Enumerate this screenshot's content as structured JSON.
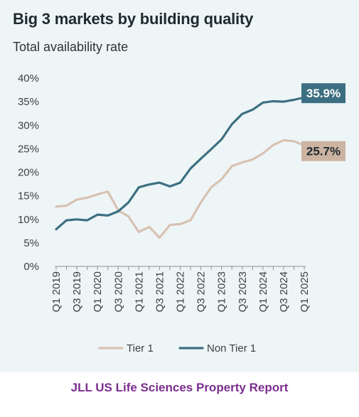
{
  "header": {
    "title": "Big 3 markets by building quality",
    "subtitle": "Total availability rate"
  },
  "footer": {
    "text": "JLL US Life Sciences Property Report"
  },
  "chart_data": {
    "type": "line",
    "title": "Big 3 markets by building quality",
    "subtitle": "Total availability rate",
    "xlabel": "",
    "ylabel": "",
    "x": [
      "Q1 2019",
      "Q2 2019",
      "Q3 2019",
      "Q4 2019",
      "Q1 2020",
      "Q2 2020",
      "Q3 2020",
      "Q4 2020",
      "Q1 2021",
      "Q2 2021",
      "Q3 2021",
      "Q4 2021",
      "Q1 2022",
      "Q2 2022",
      "Q3 2022",
      "Q4 2022",
      "Q1 2023",
      "Q2 2023",
      "Q3 2023",
      "Q4 2023",
      "Q1 2024",
      "Q2 2024",
      "Q3 2024",
      "Q4 2024",
      "Q1 2025"
    ],
    "x_tick_labels": [
      "Q1 2019",
      "Q3 2019",
      "Q1 2020",
      "Q3 2020",
      "Q1 2021",
      "Q3 2021",
      "Q1 2022",
      "Q3 2022",
      "Q1 2023",
      "Q3 2023",
      "Q1 2024",
      "Q3 2024",
      "Q1 2025"
    ],
    "y_tick_labels": [
      "0%",
      "5%",
      "10%",
      "15%",
      "20%",
      "25%",
      "30%",
      "35%",
      "40%"
    ],
    "ylim": [
      0,
      40
    ],
    "y_unit": "%",
    "grid": false,
    "legend_position": "bottom",
    "series": [
      {
        "name": "Tier 1",
        "color": "#d8c2b2",
        "values": [
          12.7,
          12.9,
          14.2,
          14.6,
          15.3,
          15.9,
          11.9,
          10.6,
          7.3,
          8.4,
          6.1,
          8.8,
          9.0,
          9.8,
          13.6,
          16.8,
          18.5,
          21.3,
          22.1,
          22.7,
          24.0,
          25.8,
          26.8,
          26.6,
          25.7
        ],
        "end_label": "25.7%",
        "end_label_bg": "#ccb3a2",
        "end_label_color": "#1f2a2e"
      },
      {
        "name": "Non Tier 1",
        "color": "#3d6f82",
        "values": [
          7.9,
          9.8,
          10.0,
          9.8,
          11.0,
          10.8,
          11.7,
          13.6,
          16.8,
          17.4,
          17.8,
          17.0,
          17.8,
          20.8,
          22.9,
          24.9,
          27.0,
          30.2,
          32.4,
          33.3,
          34.8,
          35.1,
          35.0,
          35.4,
          35.9
        ],
        "end_label": "35.9%",
        "end_label_bg": "#3d6f82",
        "end_label_color": "#ffffff"
      }
    ]
  }
}
